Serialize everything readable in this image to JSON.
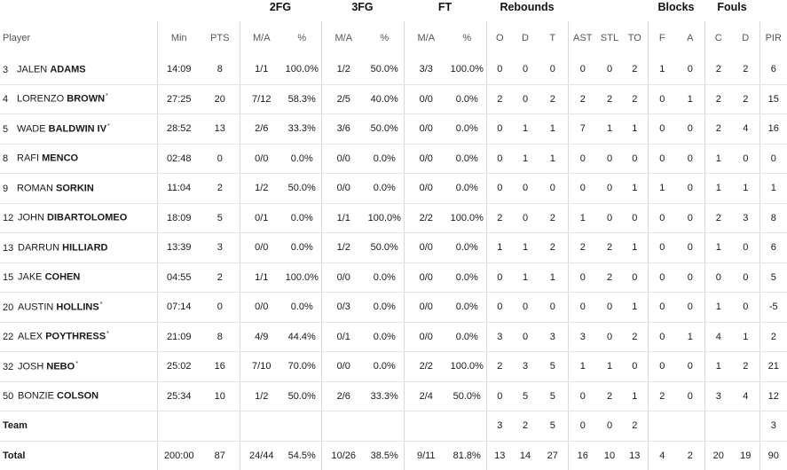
{
  "groups": {
    "fg2": "2FG",
    "fg3": "3FG",
    "ft": "FT",
    "reb": "Rebounds",
    "blk": "Blocks",
    "fouls": "Fouls"
  },
  "headers": {
    "player": "Player",
    "min": "Min",
    "pts": "PTS",
    "fg2_ma": "M/A",
    "fg2_pct": "%",
    "fg3_ma": "M/A",
    "fg3_pct": "%",
    "ft_ma": "M/A",
    "ft_pct": "%",
    "o": "O",
    "d": "D",
    "t": "T",
    "ast": "AST",
    "stl": "STL",
    "to": "TO",
    "f": "F",
    "a": "A",
    "c": "C",
    "fd": "D",
    "pir": "PIR"
  },
  "players": [
    {
      "num": "3",
      "first": "JALEN",
      "last": "ADAMS",
      "starter": "",
      "min": "14:09",
      "pts": "8",
      "fg2": "1/1",
      "fg2p": "100.0%",
      "fg3": "1/2",
      "fg3p": "50.0%",
      "ft": "3/3",
      "ftp": "100.0%",
      "o": "0",
      "d": "0",
      "t": "0",
      "ast": "0",
      "stl": "0",
      "to": "2",
      "bf": "1",
      "ba": "0",
      "fc": "2",
      "fd": "2",
      "pir": "6"
    },
    {
      "num": "4",
      "first": "LORENZO",
      "last": "BROWN",
      "starter": "*",
      "min": "27:25",
      "pts": "20",
      "fg2": "7/12",
      "fg2p": "58.3%",
      "fg3": "2/5",
      "fg3p": "40.0%",
      "ft": "0/0",
      "ftp": "0.0%",
      "o": "2",
      "d": "0",
      "t": "2",
      "ast": "2",
      "stl": "2",
      "to": "2",
      "bf": "0",
      "ba": "1",
      "fc": "2",
      "fd": "2",
      "pir": "15"
    },
    {
      "num": "5",
      "first": "WADE",
      "last": "BALDWIN IV",
      "starter": "*",
      "min": "28:52",
      "pts": "13",
      "fg2": "2/6",
      "fg2p": "33.3%",
      "fg3": "3/6",
      "fg3p": "50.0%",
      "ft": "0/0",
      "ftp": "0.0%",
      "o": "0",
      "d": "1",
      "t": "1",
      "ast": "7",
      "stl": "1",
      "to": "1",
      "bf": "0",
      "ba": "0",
      "fc": "2",
      "fd": "4",
      "pir": "16"
    },
    {
      "num": "8",
      "first": "RAFI",
      "last": "MENCO",
      "starter": "",
      "min": "02:48",
      "pts": "0",
      "fg2": "0/0",
      "fg2p": "0.0%",
      "fg3": "0/0",
      "fg3p": "0.0%",
      "ft": "0/0",
      "ftp": "0.0%",
      "o": "0",
      "d": "1",
      "t": "1",
      "ast": "0",
      "stl": "0",
      "to": "0",
      "bf": "0",
      "ba": "0",
      "fc": "1",
      "fd": "0",
      "pir": "0"
    },
    {
      "num": "9",
      "first": "ROMAN",
      "last": "SORKIN",
      "starter": "",
      "min": "11:04",
      "pts": "2",
      "fg2": "1/2",
      "fg2p": "50.0%",
      "fg3": "0/0",
      "fg3p": "0.0%",
      "ft": "0/0",
      "ftp": "0.0%",
      "o": "0",
      "d": "0",
      "t": "0",
      "ast": "0",
      "stl": "0",
      "to": "1",
      "bf": "1",
      "ba": "0",
      "fc": "1",
      "fd": "1",
      "pir": "1"
    },
    {
      "num": "12",
      "first": "JOHN",
      "last": "DIBARTOLOMEO",
      "starter": "",
      "min": "18:09",
      "pts": "5",
      "fg2": "0/1",
      "fg2p": "0.0%",
      "fg3": "1/1",
      "fg3p": "100.0%",
      "ft": "2/2",
      "ftp": "100.0%",
      "o": "2",
      "d": "0",
      "t": "2",
      "ast": "1",
      "stl": "0",
      "to": "0",
      "bf": "0",
      "ba": "0",
      "fc": "2",
      "fd": "3",
      "pir": "8"
    },
    {
      "num": "13",
      "first": "DARRUN",
      "last": "HILLIARD",
      "starter": "",
      "min": "13:39",
      "pts": "3",
      "fg2": "0/0",
      "fg2p": "0.0%",
      "fg3": "1/2",
      "fg3p": "50.0%",
      "ft": "0/0",
      "ftp": "0.0%",
      "o": "1",
      "d": "1",
      "t": "2",
      "ast": "2",
      "stl": "2",
      "to": "1",
      "bf": "0",
      "ba": "0",
      "fc": "1",
      "fd": "0",
      "pir": "6"
    },
    {
      "num": "15",
      "first": "JAKE",
      "last": "COHEN",
      "starter": "",
      "min": "04:55",
      "pts": "2",
      "fg2": "1/1",
      "fg2p": "100.0%",
      "fg3": "0/0",
      "fg3p": "0.0%",
      "ft": "0/0",
      "ftp": "0.0%",
      "o": "0",
      "d": "1",
      "t": "1",
      "ast": "0",
      "stl": "2",
      "to": "0",
      "bf": "0",
      "ba": "0",
      "fc": "0",
      "fd": "0",
      "pir": "5"
    },
    {
      "num": "20",
      "first": "AUSTIN",
      "last": "HOLLINS",
      "starter": "*",
      "min": "07:14",
      "pts": "0",
      "fg2": "0/0",
      "fg2p": "0.0%",
      "fg3": "0/3",
      "fg3p": "0.0%",
      "ft": "0/0",
      "ftp": "0.0%",
      "o": "0",
      "d": "0",
      "t": "0",
      "ast": "0",
      "stl": "0",
      "to": "1",
      "bf": "0",
      "ba": "0",
      "fc": "1",
      "fd": "0",
      "pir": "-5"
    },
    {
      "num": "22",
      "first": "ALEX",
      "last": "POYTHRESS",
      "starter": "*",
      "min": "21:09",
      "pts": "8",
      "fg2": "4/9",
      "fg2p": "44.4%",
      "fg3": "0/1",
      "fg3p": "0.0%",
      "ft": "0/0",
      "ftp": "0.0%",
      "o": "3",
      "d": "0",
      "t": "3",
      "ast": "3",
      "stl": "0",
      "to": "2",
      "bf": "0",
      "ba": "1",
      "fc": "4",
      "fd": "1",
      "pir": "2"
    },
    {
      "num": "32",
      "first": "JOSH",
      "last": "NEBO",
      "starter": "*",
      "min": "25:02",
      "pts": "16",
      "fg2": "7/10",
      "fg2p": "70.0%",
      "fg3": "0/0",
      "fg3p": "0.0%",
      "ft": "2/2",
      "ftp": "100.0%",
      "o": "2",
      "d": "3",
      "t": "5",
      "ast": "1",
      "stl": "1",
      "to": "0",
      "bf": "0",
      "ba": "0",
      "fc": "1",
      "fd": "2",
      "pir": "21"
    },
    {
      "num": "50",
      "first": "BONZIE",
      "last": "COLSON",
      "starter": "",
      "min": "25:34",
      "pts": "10",
      "fg2": "1/2",
      "fg2p": "50.0%",
      "fg3": "2/6",
      "fg3p": "33.3%",
      "ft": "2/4",
      "ftp": "50.0%",
      "o": "0",
      "d": "5",
      "t": "5",
      "ast": "0",
      "stl": "2",
      "to": "1",
      "bf": "2",
      "ba": "0",
      "fc": "3",
      "fd": "4",
      "pir": "12"
    }
  ],
  "team": {
    "label": "Team",
    "o": "3",
    "d": "2",
    "t": "5",
    "ast": "0",
    "stl": "0",
    "to": "2",
    "pir": "3"
  },
  "total": {
    "label": "Total",
    "min": "200:00",
    "pts": "87",
    "fg2": "24/44",
    "fg2p": "54.5%",
    "fg3": "10/26",
    "fg3p": "38.5%",
    "ft": "9/11",
    "ftp": "81.8%",
    "o": "13",
    "d": "14",
    "t": "27",
    "ast": "16",
    "stl": "10",
    "to": "13",
    "bf": "4",
    "ba": "2",
    "fc": "20",
    "fd": "19",
    "pir": "90"
  }
}
